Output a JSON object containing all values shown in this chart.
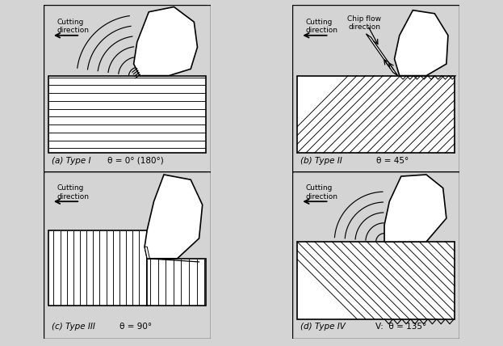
{
  "bg_color": "#d4d4d4",
  "panel_bg": "#ffffff",
  "line_color": "#000000",
  "title_a": "(a) Type I",
  "title_b": "(b) Type II",
  "title_c": "(c) Type III",
  "title_d": "(d) Type IV",
  "theta_a": "θ = 0° (180°)",
  "theta_b": "θ = 45°",
  "theta_c": "θ = 90°",
  "theta_d": "V:  θ = 135°",
  "cutting_dir": "Cutting\ndirection",
  "cutting_tool": "Cutting\ntool",
  "chip_flow": "Chip flow\ndirection",
  "font_size_label": 7.5,
  "font_size_theta": 7.5,
  "font_size_ann": 6.5
}
